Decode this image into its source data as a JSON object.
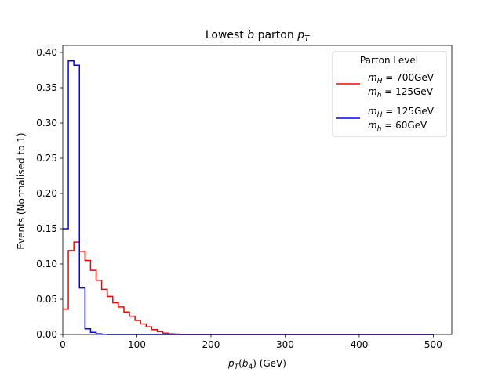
{
  "chart_data": {
    "type": "histogram",
    "title": "Lowest b parton p_T",
    "title_parts": {
      "prefix": "Lowest ",
      "italic_var": "b",
      "middle": " parton ",
      "p": "p",
      "sub": "T"
    },
    "xlabel": "p_T(b_4) (GeV)",
    "xlabel_parts": {
      "p": "p",
      "sub": "T",
      "arg_open": "(",
      "b": "b",
      "b_sub": "4",
      "arg_close": ")",
      "unit": " (GeV)"
    },
    "ylabel": "Events (Normalised to 1)",
    "xlim": [
      0,
      525
    ],
    "ylim": [
      0,
      0.41
    ],
    "xticks": [
      0,
      100,
      200,
      300,
      400,
      500
    ],
    "xtick_labels": [
      "0",
      "100",
      "200",
      "300",
      "400",
      "500"
    ],
    "yticks": [
      0.0,
      0.05,
      0.1,
      0.15,
      0.2,
      0.25,
      0.3,
      0.35,
      0.4
    ],
    "ytick_labels": [
      "0.00",
      "0.05",
      "0.10",
      "0.15",
      "0.20",
      "0.25",
      "0.30",
      "0.35",
      "0.40"
    ],
    "bin_width": 7.5,
    "bin_start": 0,
    "bin_end": 500,
    "legend": {
      "title": "Parton Level",
      "position": "top-right",
      "entries": [
        {
          "line1": "m_H = 700GeV",
          "line2": "m_h = 125GeV",
          "line1_var": "m",
          "line1_sub": "H",
          "line1_rest": " = 700GeV",
          "line2_var": "m",
          "line2_sub": "h",
          "line2_rest": " = 125GeV",
          "color": "#ff0000"
        },
        {
          "line1": "m_H = 125GeV",
          "line2": "m_h = 60GeV",
          "line1_var": "m",
          "line1_sub": "H",
          "line1_rest": " = 125GeV",
          "line2_var": "m",
          "line2_sub": "h",
          "line2_rest": " = 60GeV",
          "color": "#0000ff"
        }
      ]
    },
    "series": [
      {
        "name": "m_H = 700GeV, m_h = 125GeV",
        "color": "#ff0000",
        "values": [
          0.036,
          0.119,
          0.131,
          0.118,
          0.105,
          0.091,
          0.077,
          0.064,
          0.054,
          0.045,
          0.039,
          0.032,
          0.026,
          0.02,
          0.015,
          0.011,
          0.007,
          0.004,
          0.002,
          0.001,
          0.0005,
          0.0002
        ]
      },
      {
        "name": "m_H = 125GeV, m_h = 60GeV",
        "color": "#0000ff",
        "values": [
          0.15,
          0.388,
          0.382,
          0.066,
          0.008,
          0.003,
          0.001,
          0.0003
        ]
      }
    ]
  }
}
